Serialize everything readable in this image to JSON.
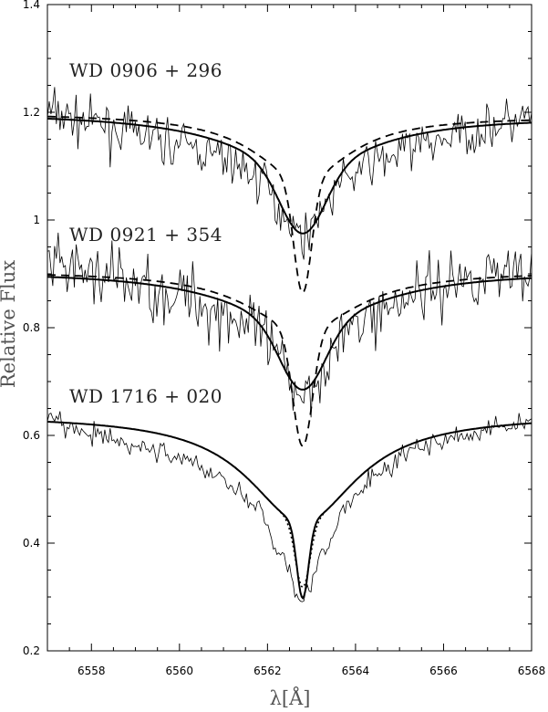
{
  "chart_data": {
    "type": "line",
    "title": "",
    "xlabel": "λ[Å]",
    "ylabel": "Relative Flux",
    "xlim": [
      6557,
      6568
    ],
    "ylim": [
      0.2,
      1.4
    ],
    "xticks": [
      6558,
      6560,
      6562,
      6564,
      6566,
      6568
    ],
    "yticks": [
      0.2,
      0.4,
      0.6,
      0.8,
      1,
      1.2,
      1.4
    ],
    "xtick_labels": [
      "6558",
      "6560",
      "6562",
      "6564",
      "6566",
      "6568"
    ],
    "ytick_labels": [
      "0.2",
      "0.4",
      "0.6",
      "0.8",
      "1",
      "1.2",
      "1.4"
    ],
    "grid": false,
    "line_center": 6562.8,
    "stars": [
      {
        "label": "WD 0906 + 296",
        "observed": {
          "noise": 0.035,
          "anchors": [
            [
              6557,
              1.2
            ],
            [
              6558,
              1.18
            ],
            [
              6559,
              1.16
            ],
            [
              6560,
              1.14
            ],
            [
              6561,
              1.115
            ],
            [
              6561.8,
              1.08
            ],
            [
              6562.3,
              1.02
            ],
            [
              6562.8,
              0.97
            ],
            [
              6563.3,
              1.03
            ],
            [
              6563.8,
              1.08
            ],
            [
              6564.5,
              1.11
            ],
            [
              6565.5,
              1.14
            ],
            [
              6566.5,
              1.16
            ],
            [
              6567.5,
              1.18
            ],
            [
              6568,
              1.19
            ]
          ]
        },
        "fits": [
          {
            "style": "solid",
            "continuum": 1.195,
            "slope": -0.0005,
            "depth": 0.1,
            "gamma_l": 1.9,
            "depth_g": 0.12,
            "sigma": 0.5
          },
          {
            "style": "dashed",
            "continuum": 1.195,
            "slope": -0.0005,
            "depth": 0.12,
            "gamma_l": 1.3,
            "depth_g": 0.21,
            "sigma": 0.2
          }
        ]
      },
      {
        "label": "WD 0921 + 354",
        "observed": {
          "noise": 0.05,
          "anchors": [
            [
              6557,
              0.91
            ],
            [
              6558,
              0.9
            ],
            [
              6559,
              0.88
            ],
            [
              6560,
              0.86
            ],
            [
              6561,
              0.83
            ],
            [
              6561.8,
              0.79
            ],
            [
              6562.3,
              0.73
            ],
            [
              6562.8,
              0.68
            ],
            [
              6563.3,
              0.73
            ],
            [
              6563.8,
              0.79
            ],
            [
              6564.5,
              0.83
            ],
            [
              6565.5,
              0.87
            ],
            [
              6566.5,
              0.89
            ],
            [
              6567.5,
              0.91
            ],
            [
              6568,
              0.92
            ]
          ]
        },
        "fits": [
          {
            "style": "solid",
            "continuum": 0.905,
            "slope": 0,
            "depth": 0.1,
            "gamma_l": 2.0,
            "depth_g": 0.12,
            "sigma": 0.5
          },
          {
            "style": "dashed",
            "continuum": 0.905,
            "slope": 0,
            "depth": 0.11,
            "gamma_l": 1.5,
            "depth_g": 0.215,
            "sigma": 0.22
          }
        ]
      },
      {
        "label": "WD 1716 + 020",
        "observed": {
          "noise": 0.016,
          "anchors": [
            [
              6557,
              0.63
            ],
            [
              6558,
              0.6
            ],
            [
              6559,
              0.58
            ],
            [
              6560,
              0.56
            ],
            [
              6561,
              0.52
            ],
            [
              6561.8,
              0.46
            ],
            [
              6562.3,
              0.38
            ],
            [
              6562.8,
              0.3
            ],
            [
              6563.3,
              0.38
            ],
            [
              6563.8,
              0.47
            ],
            [
              6564.5,
              0.53
            ],
            [
              6565.5,
              0.58
            ],
            [
              6566.5,
              0.6
            ],
            [
              6567.5,
              0.62
            ],
            [
              6568,
              0.63
            ]
          ]
        },
        "fits": [
          {
            "style": "solid",
            "continuum": 0.638,
            "slope": 0,
            "depth": 0.2,
            "gamma_l": 1.5,
            "depth_g": 0.14,
            "sigma": 0.13
          },
          {
            "style": "dotted",
            "continuum": 0.638,
            "slope": 0,
            "depth": 0.2,
            "gamma_l": 1.5,
            "depth_g": 0.12,
            "sigma": 0.16
          }
        ]
      }
    ]
  }
}
